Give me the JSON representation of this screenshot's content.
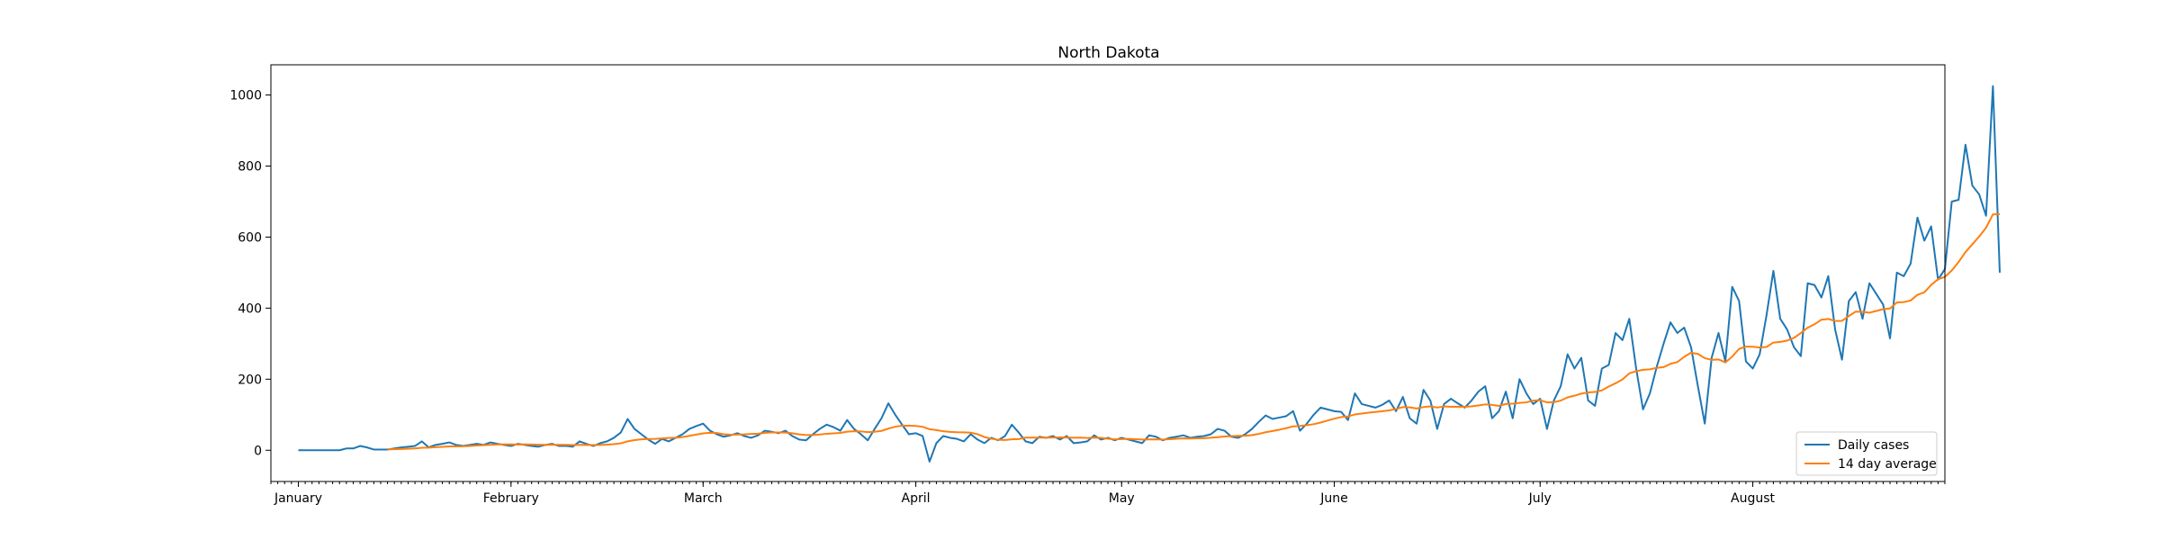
{
  "chart_data": {
    "type": "line",
    "title": "North Dakota",
    "xlabel": "",
    "ylabel": "",
    "x_range": [
      "2020-12-28",
      "2021-08-29"
    ],
    "ylim": [
      -88,
      1085
    ],
    "x_ticks": [
      {
        "label": "January",
        "date": "2021-01-01"
      },
      {
        "label": "February",
        "date": "2021-02-01"
      },
      {
        "label": "March",
        "date": "2021-03-01"
      },
      {
        "label": "April",
        "date": "2021-04-01"
      },
      {
        "label": "May",
        "date": "2021-05-01"
      },
      {
        "label": "June",
        "date": "2021-06-01"
      },
      {
        "label": "July",
        "date": "2021-07-01"
      },
      {
        "label": "August",
        "date": "2021-08-01"
      }
    ],
    "y_ticks": [
      0,
      200,
      400,
      600,
      800,
      1000
    ],
    "grid": false,
    "legend_position": "lower-right",
    "start_date": "2021-01-01",
    "series": [
      {
        "name": "Daily cases",
        "color": "#1f77b4",
        "values": [
          0,
          0,
          0,
          0,
          0,
          0,
          0,
          5,
          5,
          12,
          8,
          2,
          2,
          2,
          5,
          8,
          10,
          12,
          25,
          8,
          15,
          18,
          22,
          15,
          12,
          15,
          18,
          15,
          22,
          18,
          15,
          12,
          18,
          15,
          12,
          10,
          15,
          18,
          12,
          12,
          10,
          25,
          18,
          12,
          20,
          25,
          35,
          50,
          88,
          60,
          45,
          30,
          18,
          32,
          25,
          35,
          45,
          60,
          68,
          75,
          55,
          45,
          38,
          42,
          48,
          40,
          35,
          42,
          55,
          52,
          48,
          55,
          40,
          30,
          28,
          45,
          60,
          72,
          65,
          55,
          85,
          60,
          45,
          28,
          60,
          90,
          132,
          100,
          72,
          45,
          48,
          40,
          -32,
          20,
          40,
          35,
          32,
          25,
          45,
          30,
          20,
          35,
          28,
          40,
          72,
          50,
          25,
          20,
          38,
          35,
          40,
          30,
          40,
          20,
          22,
          25,
          42,
          30,
          35,
          28,
          35,
          30,
          25,
          20,
          42,
          38,
          28,
          35,
          38,
          42,
          35,
          38,
          40,
          45,
          60,
          55,
          38,
          35,
          45,
          60,
          80,
          98,
          88,
          92,
          96,
          110,
          55,
          75,
          100,
          120,
          115,
          110,
          108,
          85,
          160,
          130,
          125,
          120,
          128,
          140,
          110,
          150,
          90,
          75,
          170,
          140,
          60,
          130,
          145,
          132,
          120,
          140,
          165,
          180,
          90,
          110,
          165,
          90,
          200,
          160,
          130,
          145,
          60,
          140,
          180,
          270,
          230,
          260,
          140,
          125,
          230,
          240,
          330,
          310,
          370,
          230,
          115,
          160,
          235,
          300,
          360,
          330,
          345,
          290,
          180,
          75,
          260,
          330,
          250,
          460,
          420,
          250,
          230,
          270,
          380,
          505,
          370,
          340,
          290,
          265,
          470,
          465,
          430,
          490,
          340,
          255,
          420,
          445,
          370,
          470,
          440,
          410,
          315,
          500,
          490,
          525,
          655,
          590,
          630,
          480,
          510,
          700,
          705,
          860,
          745,
          720,
          660,
          1025,
          500
        ]
      },
      {
        "name": "14 day average",
        "color": "#ff7f0e",
        "values": [
          null,
          null,
          null,
          null,
          null,
          null,
          null,
          null,
          null,
          null,
          null,
          null,
          null,
          null,
          null,
          null,
          null,
          null,
          null,
          null,
          null,
          null,
          null,
          null,
          null,
          null,
          null,
          null,
          null,
          null,
          null,
          null,
          null,
          null,
          null,
          null,
          null,
          null,
          null,
          null,
          null,
          null,
          null,
          null,
          null,
          null,
          null,
          null,
          null,
          null,
          null,
          null,
          null,
          null,
          null,
          null,
          null,
          null,
          null,
          null,
          null,
          null,
          null,
          null,
          null,
          null,
          null,
          null,
          null,
          null,
          null,
          null,
          null,
          null,
          null,
          null,
          null,
          null,
          null,
          null,
          null,
          null,
          null,
          null,
          null,
          null,
          null,
          null,
          null,
          null,
          null,
          null,
          null,
          null,
          null,
          null,
          null,
          null,
          null,
          null,
          null,
          null,
          null,
          null,
          null,
          null,
          null,
          null,
          null,
          null,
          null,
          null,
          null,
          null,
          null,
          null,
          null,
          null,
          null,
          null,
          null,
          null,
          null,
          null,
          null,
          null,
          null,
          null,
          null,
          null,
          null,
          null,
          null,
          null,
          null,
          null,
          null,
          null,
          null,
          null,
          null,
          null,
          null,
          null,
          null,
          null,
          null,
          null,
          null,
          null,
          null,
          null,
          null,
          null,
          null,
          null,
          null,
          null,
          null,
          null,
          null,
          null,
          null,
          null,
          null,
          null,
          null,
          null,
          null,
          null,
          null,
          null,
          null,
          null,
          null,
          null,
          null,
          null,
          null,
          null,
          null,
          null,
          null,
          null,
          null,
          null,
          null,
          null,
          null,
          null,
          null,
          null,
          null,
          null,
          null,
          null,
          null,
          null,
          null,
          null,
          null,
          null,
          null,
          null,
          null,
          null,
          null,
          null,
          null,
          null,
          null,
          null,
          null,
          null,
          null,
          null,
          null,
          null,
          null,
          null,
          null,
          null,
          null,
          null,
          null,
          null,
          null,
          null,
          null,
          null,
          null,
          null,
          null,
          null,
          null,
          null,
          null,
          null,
          null,
          null,
          null,
          null,
          null,
          null,
          null,
          null,
          null,
          null,
          null,
          null,
          null,
          null,
          null,
          null,
          null,
          null,
          null,
          null,
          null,
          null,
          null
        ]
      }
    ]
  },
  "legend": [
    {
      "label": "Daily cases",
      "color": "#1f77b4"
    },
    {
      "label": "14 day average",
      "color": "#ff7f0e"
    }
  ]
}
